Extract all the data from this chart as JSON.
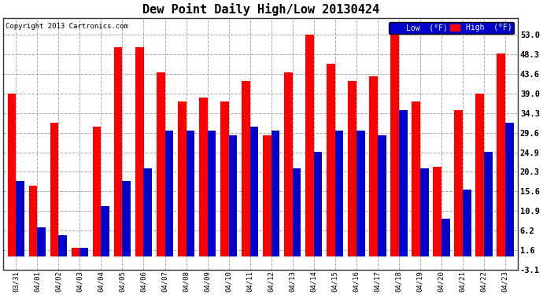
{
  "title": "Dew Point Daily High/Low 20130424",
  "copyright": "Copyright 2013 Cartronics.com",
  "ylabel_right": [
    "53.0",
    "48.3",
    "43.6",
    "39.0",
    "34.3",
    "29.6",
    "24.9",
    "20.3",
    "15.6",
    "10.9",
    "6.2",
    "1.6",
    "-3.1"
  ],
  "yticks": [
    53.0,
    48.3,
    43.6,
    39.0,
    34.3,
    29.6,
    24.9,
    20.3,
    15.6,
    10.9,
    6.2,
    1.6,
    -3.1
  ],
  "ylim": [
    -3.1,
    57.0
  ],
  "categories": [
    "03/31",
    "04/01",
    "04/02",
    "04/03",
    "04/04",
    "04/05",
    "04/06",
    "04/07",
    "04/08",
    "04/09",
    "04/10",
    "04/11",
    "04/12",
    "04/13",
    "04/14",
    "04/15",
    "04/16",
    "04/17",
    "04/18",
    "04/19",
    "04/20",
    "04/21",
    "04/22",
    "04/23"
  ],
  "high": [
    39.0,
    17.0,
    32.0,
    2.0,
    31.0,
    50.0,
    50.0,
    44.0,
    37.0,
    38.0,
    37.0,
    42.0,
    29.0,
    44.0,
    53.0,
    46.0,
    42.0,
    43.0,
    54.0,
    37.0,
    21.5,
    35.0,
    39.0,
    48.5
  ],
  "low": [
    18.0,
    7.0,
    5.0,
    2.0,
    12.0,
    18.0,
    21.0,
    30.0,
    30.0,
    30.0,
    29.0,
    31.0,
    30.0,
    21.0,
    25.0,
    30.0,
    30.0,
    29.0,
    35.0,
    21.0,
    9.0,
    16.0,
    25.0,
    32.0
  ],
  "bar_color_high": "#FF0000",
  "bar_color_low": "#0000CC",
  "background_color": "#FFFFFF",
  "grid_color": "#AAAAAA",
  "title_fontsize": 11,
  "legend_high_label": "High  (°F)",
  "legend_low_label": "Low  (°F)",
  "bar_width": 0.4,
  "figsize": [
    6.9,
    3.75
  ],
  "dpi": 100
}
